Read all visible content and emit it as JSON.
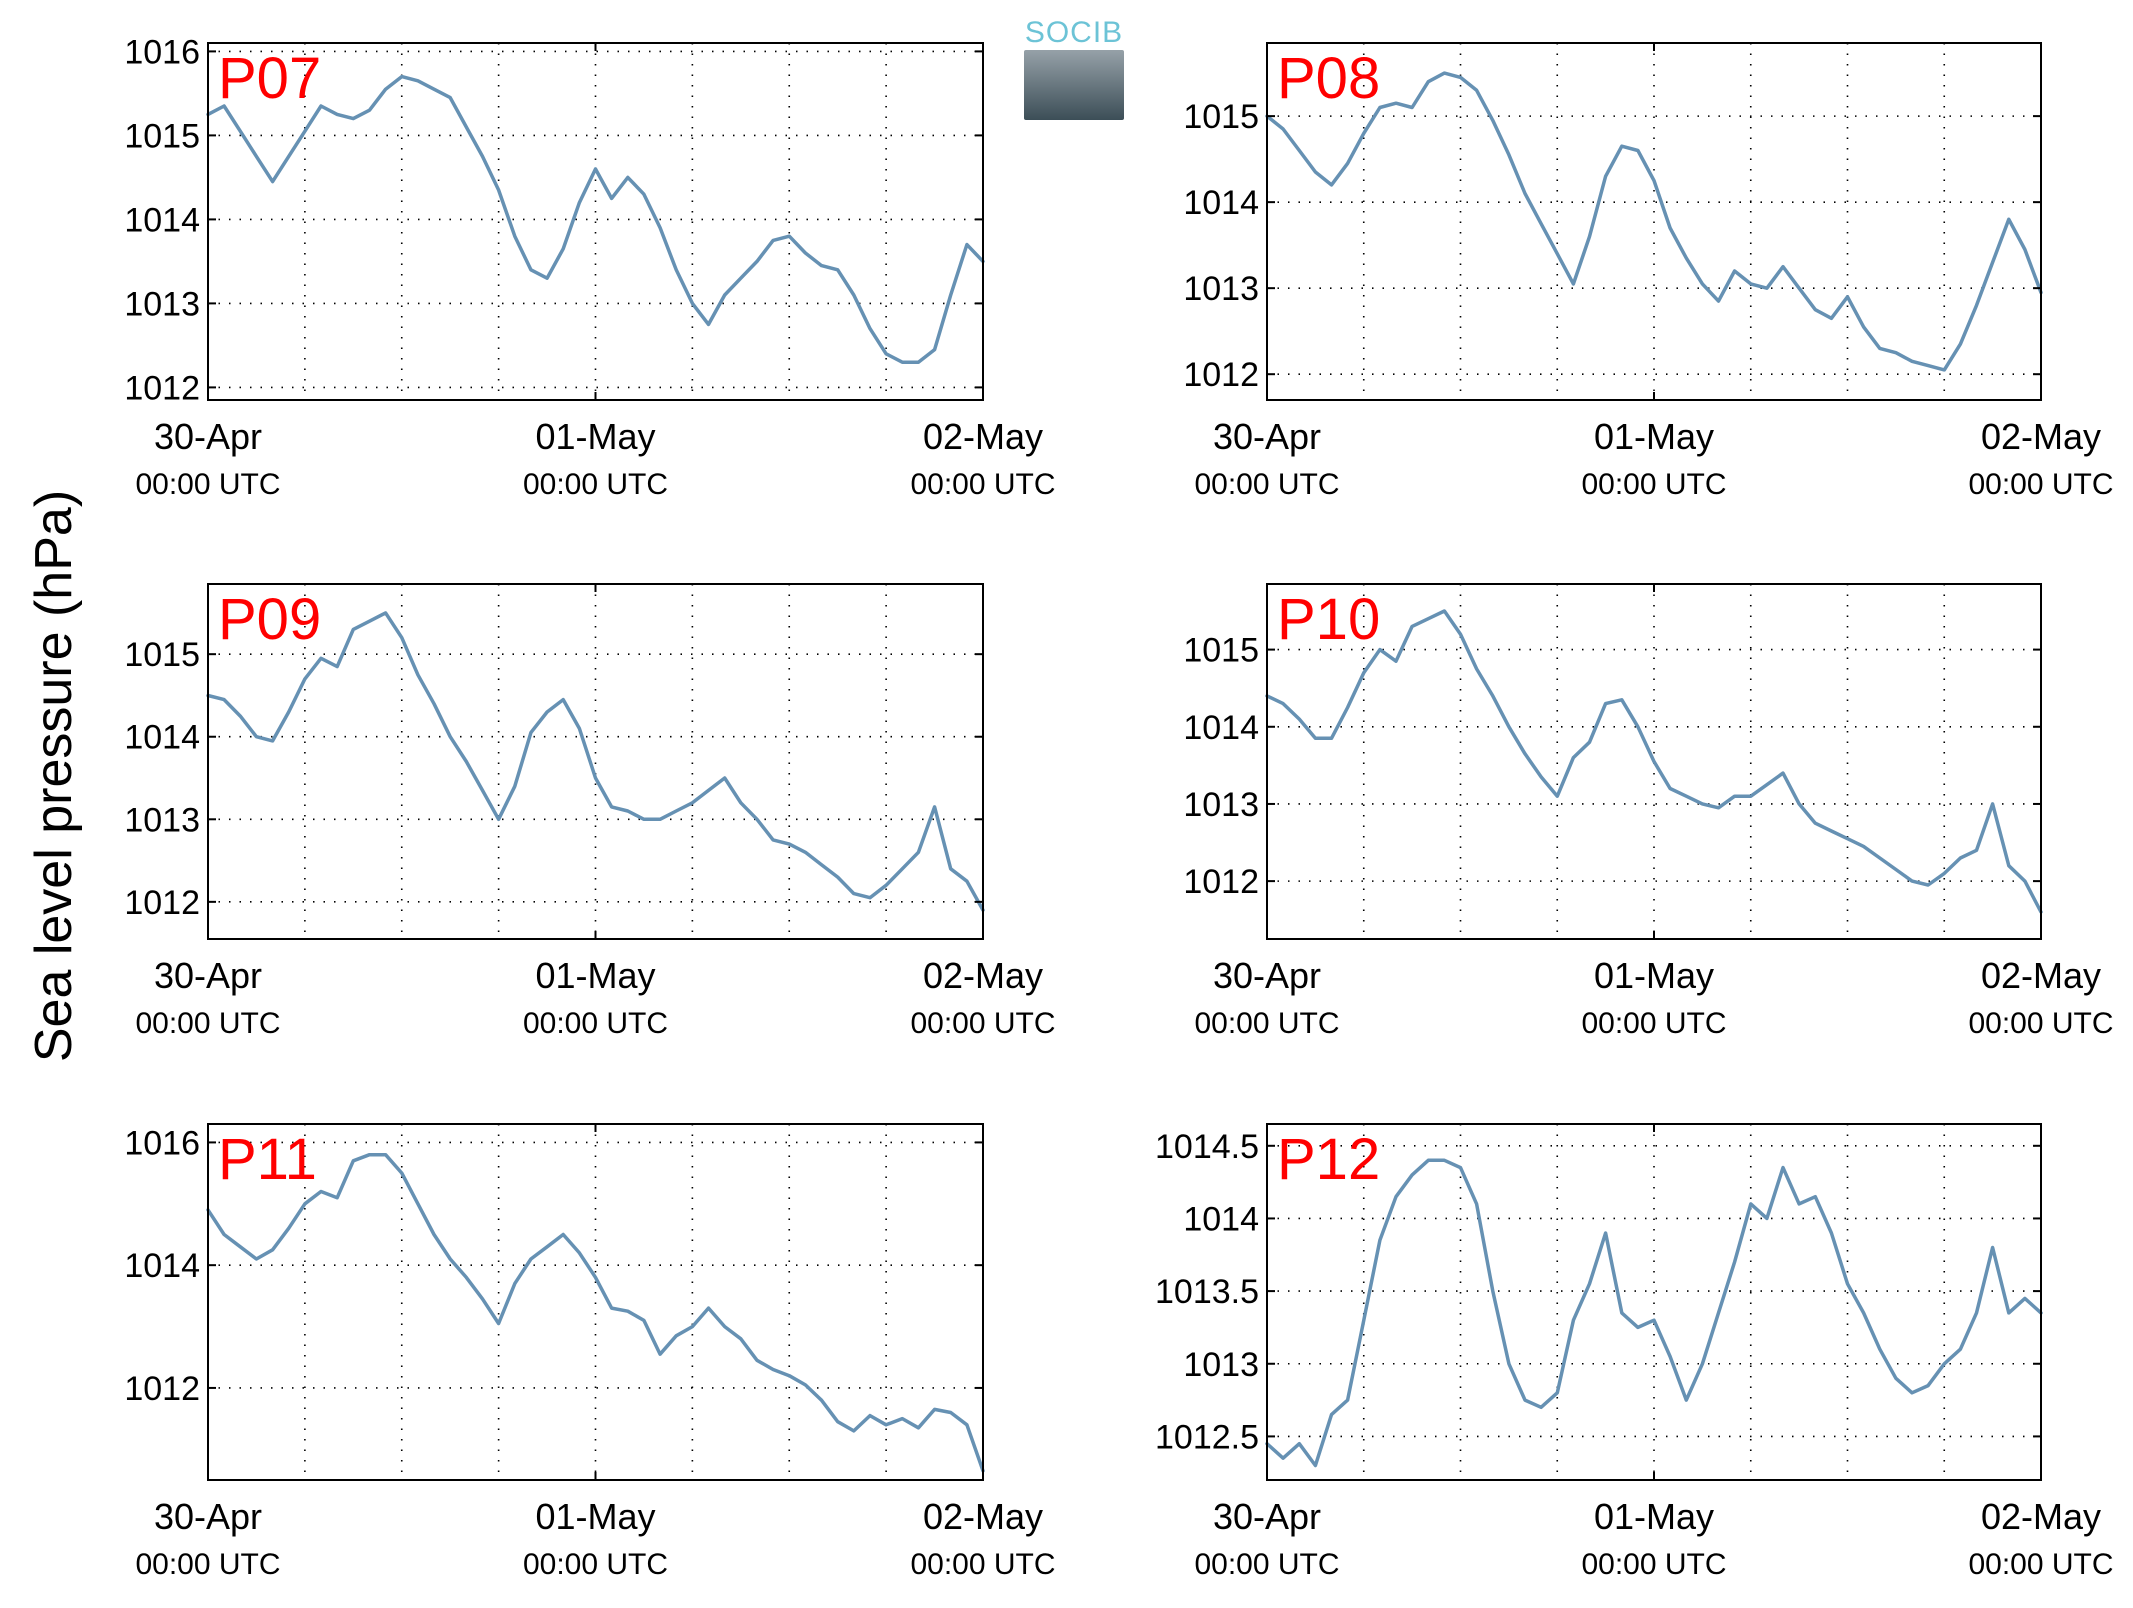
{
  "figure": {
    "ylabel": "Sea level pressure (hPa)",
    "logo_text": "SOCIB"
  },
  "style": {
    "line_color": "#6691b3",
    "label_color": "#ff0000"
  },
  "chart_data": [
    {
      "type": "line",
      "label": "P07",
      "x_ticks": [
        {
          "main": "30-Apr",
          "sub": "00:00 UTC"
        },
        {
          "main": "01-May",
          "sub": "00:00 UTC"
        },
        {
          "main": "02-May",
          "sub": "00:00 UTC"
        }
      ],
      "ylim": [
        1011.85,
        1016.1
      ],
      "yticks": [
        1012,
        1013,
        1014,
        1015,
        1016
      ],
      "ytick_labels": [
        "1012",
        "1013",
        "1014",
        "1015",
        "1016"
      ],
      "grid": true,
      "x": [
        0,
        1,
        2,
        3,
        4,
        5,
        6,
        7,
        8,
        9,
        10,
        11,
        12,
        13,
        14,
        15,
        16,
        17,
        18,
        19,
        20,
        21,
        22,
        23,
        24,
        25,
        26,
        27,
        28,
        29,
        30,
        31,
        32,
        33,
        34,
        35,
        36,
        37,
        38,
        39,
        40,
        41,
        42,
        43,
        44,
        45,
        46,
        47,
        48
      ],
      "y": [
        1015.25,
        1015.35,
        1015.05,
        1014.75,
        1014.45,
        1014.75,
        1015.05,
        1015.35,
        1015.25,
        1015.2,
        1015.3,
        1015.55,
        1015.7,
        1015.65,
        1015.55,
        1015.45,
        1015.1,
        1014.75,
        1014.35,
        1013.8,
        1013.4,
        1013.3,
        1013.65,
        1014.2,
        1014.6,
        1014.25,
        1014.5,
        1014.3,
        1013.9,
        1013.4,
        1013.0,
        1012.75,
        1013.1,
        1013.3,
        1013.5,
        1013.75,
        1013.8,
        1013.6,
        1013.45,
        1013.4,
        1013.1,
        1012.7,
        1012.4,
        1012.3,
        1012.3,
        1012.45,
        1013.1,
        1013.7,
        1013.5
      ]
    },
    {
      "type": "line",
      "label": "P08",
      "x_ticks": [
        {
          "main": "30-Apr",
          "sub": "00:00 UTC"
        },
        {
          "main": "01-May",
          "sub": "00:00 UTC"
        },
        {
          "main": "02-May",
          "sub": "00:00 UTC"
        }
      ],
      "ylim": [
        1011.7,
        1015.85
      ],
      "yticks": [
        1012,
        1013,
        1014,
        1015
      ],
      "ytick_labels": [
        "1012",
        "1013",
        "1014",
        "1015"
      ],
      "grid": true,
      "x": [
        0,
        1,
        2,
        3,
        4,
        5,
        6,
        7,
        8,
        9,
        10,
        11,
        12,
        13,
        14,
        15,
        16,
        17,
        18,
        19,
        20,
        21,
        22,
        23,
        24,
        25,
        26,
        27,
        28,
        29,
        30,
        31,
        32,
        33,
        34,
        35,
        36,
        37,
        38,
        39,
        40,
        41,
        42,
        43,
        44,
        45,
        46,
        47,
        48
      ],
      "y": [
        1015.0,
        1014.85,
        1014.6,
        1014.35,
        1014.2,
        1014.45,
        1014.8,
        1015.1,
        1015.15,
        1015.1,
        1015.4,
        1015.5,
        1015.45,
        1015.3,
        1014.95,
        1014.55,
        1014.1,
        1013.75,
        1013.4,
        1013.05,
        1013.6,
        1014.3,
        1014.65,
        1014.6,
        1014.25,
        1013.7,
        1013.35,
        1013.05,
        1012.85,
        1013.2,
        1013.05,
        1013.0,
        1013.25,
        1013.0,
        1012.75,
        1012.65,
        1012.9,
        1012.55,
        1012.3,
        1012.25,
        1012.15,
        1012.1,
        1012.05,
        1012.35,
        1012.8,
        1013.3,
        1013.8,
        1013.45,
        1012.95
      ]
    },
    {
      "type": "line",
      "label": "P09",
      "x_ticks": [
        {
          "main": "30-Apr",
          "sub": "00:00 UTC"
        },
        {
          "main": "01-May",
          "sub": "00:00 UTC"
        },
        {
          "main": "02-May",
          "sub": "00:00 UTC"
        }
      ],
      "ylim": [
        1011.55,
        1015.85
      ],
      "yticks": [
        1012,
        1013,
        1014,
        1015
      ],
      "ytick_labels": [
        "1012",
        "1013",
        "1014",
        "1015"
      ],
      "grid": true,
      "x": [
        0,
        1,
        2,
        3,
        4,
        5,
        6,
        7,
        8,
        9,
        10,
        11,
        12,
        13,
        14,
        15,
        16,
        17,
        18,
        19,
        20,
        21,
        22,
        23,
        24,
        25,
        26,
        27,
        28,
        29,
        30,
        31,
        32,
        33,
        34,
        35,
        36,
        37,
        38,
        39,
        40,
        41,
        42,
        43,
        44,
        45,
        46,
        47,
        48
      ],
      "y": [
        1014.5,
        1014.45,
        1014.25,
        1014.0,
        1013.95,
        1014.3,
        1014.7,
        1014.95,
        1014.85,
        1015.3,
        1015.4,
        1015.5,
        1015.2,
        1014.75,
        1014.4,
        1014.0,
        1013.7,
        1013.35,
        1013.0,
        1013.4,
        1014.05,
        1014.3,
        1014.45,
        1014.1,
        1013.5,
        1013.15,
        1013.1,
        1013.0,
        1013.0,
        1013.1,
        1013.2,
        1013.35,
        1013.5,
        1013.2,
        1013.0,
        1012.75,
        1012.7,
        1012.6,
        1012.45,
        1012.3,
        1012.1,
        1012.05,
        1012.2,
        1012.4,
        1012.6,
        1013.15,
        1012.4,
        1012.25,
        1011.9
      ]
    },
    {
      "type": "line",
      "label": "P10",
      "x_ticks": [
        {
          "main": "30-Apr",
          "sub": "00:00 UTC"
        },
        {
          "main": "01-May",
          "sub": "00:00 UTC"
        },
        {
          "main": "02-May",
          "sub": "00:00 UTC"
        }
      ],
      "ylim": [
        1011.25,
        1015.85
      ],
      "yticks": [
        1012,
        1013,
        1014,
        1015
      ],
      "ytick_labels": [
        "1012",
        "1013",
        "1014",
        "1015"
      ],
      "grid": true,
      "x": [
        0,
        1,
        2,
        3,
        4,
        5,
        6,
        7,
        8,
        9,
        10,
        11,
        12,
        13,
        14,
        15,
        16,
        17,
        18,
        19,
        20,
        21,
        22,
        23,
        24,
        25,
        26,
        27,
        28,
        29,
        30,
        31,
        32,
        33,
        34,
        35,
        36,
        37,
        38,
        39,
        40,
        41,
        42,
        43,
        44,
        45,
        46,
        47,
        48
      ],
      "y": [
        1014.4,
        1014.3,
        1014.1,
        1013.85,
        1013.85,
        1014.25,
        1014.7,
        1015.0,
        1014.85,
        1015.3,
        1015.4,
        1015.5,
        1015.2,
        1014.75,
        1014.4,
        1014.0,
        1013.65,
        1013.35,
        1013.1,
        1013.6,
        1013.8,
        1014.3,
        1014.35,
        1014.0,
        1013.55,
        1013.2,
        1013.1,
        1013.0,
        1012.95,
        1013.1,
        1013.1,
        1013.25,
        1013.4,
        1013.0,
        1012.75,
        1012.65,
        1012.55,
        1012.45,
        1012.3,
        1012.15,
        1012.0,
        1011.95,
        1012.1,
        1012.3,
        1012.4,
        1013.0,
        1012.2,
        1012.0,
        1011.6
      ]
    },
    {
      "type": "line",
      "label": "P11",
      "x_ticks": [
        {
          "main": "30-Apr",
          "sub": "00:00 UTC"
        },
        {
          "main": "01-May",
          "sub": "00:00 UTC"
        },
        {
          "main": "02-May",
          "sub": "00:00 UTC"
        }
      ],
      "ylim": [
        1010.5,
        1016.3
      ],
      "yticks": [
        1012,
        1014,
        1016
      ],
      "ytick_labels": [
        "1012",
        "1014",
        "1016"
      ],
      "grid": true,
      "x": [
        0,
        1,
        2,
        3,
        4,
        5,
        6,
        7,
        8,
        9,
        10,
        11,
        12,
        13,
        14,
        15,
        16,
        17,
        18,
        19,
        20,
        21,
        22,
        23,
        24,
        25,
        26,
        27,
        28,
        29,
        30,
        31,
        32,
        33,
        34,
        35,
        36,
        37,
        38,
        39,
        40,
        41,
        42,
        43,
        44,
        45,
        46,
        47,
        48
      ],
      "y": [
        1014.9,
        1014.5,
        1014.3,
        1014.1,
        1014.25,
        1014.6,
        1015.0,
        1015.2,
        1015.1,
        1015.7,
        1015.8,
        1015.8,
        1015.5,
        1015.0,
        1014.5,
        1014.1,
        1013.8,
        1013.45,
        1013.05,
        1013.7,
        1014.1,
        1014.3,
        1014.5,
        1014.2,
        1013.8,
        1013.3,
        1013.25,
        1013.1,
        1012.55,
        1012.85,
        1013.0,
        1013.3,
        1013.0,
        1012.8,
        1012.45,
        1012.3,
        1012.2,
        1012.05,
        1011.8,
        1011.45,
        1011.3,
        1011.55,
        1011.4,
        1011.5,
        1011.35,
        1011.65,
        1011.6,
        1011.4,
        1010.65
      ]
    },
    {
      "type": "line",
      "label": "P12",
      "x_ticks": [
        {
          "main": "30-Apr",
          "sub": "00:00 UTC"
        },
        {
          "main": "01-May",
          "sub": "00:00 UTC"
        },
        {
          "main": "02-May",
          "sub": "00:00 UTC"
        }
      ],
      "ylim": [
        1012.2,
        1014.65
      ],
      "yticks": [
        1012.5,
        1013,
        1013.5,
        1014,
        1014.5
      ],
      "ytick_labels": [
        "1012.5",
        "1013",
        "1013.5",
        "1014",
        "1014.5"
      ],
      "grid": true,
      "x": [
        0,
        1,
        2,
        3,
        4,
        5,
        6,
        7,
        8,
        9,
        10,
        11,
        12,
        13,
        14,
        15,
        16,
        17,
        18,
        19,
        20,
        21,
        22,
        23,
        24,
        25,
        26,
        27,
        28,
        29,
        30,
        31,
        32,
        33,
        34,
        35,
        36,
        37,
        38,
        39,
        40,
        41,
        42,
        43,
        44,
        45,
        46,
        47,
        48
      ],
      "y": [
        1012.45,
        1012.35,
        1012.45,
        1012.3,
        1012.65,
        1012.75,
        1013.3,
        1013.85,
        1014.15,
        1014.3,
        1014.4,
        1014.4,
        1014.35,
        1014.1,
        1013.5,
        1013.0,
        1012.75,
        1012.7,
        1012.8,
        1013.3,
        1013.55,
        1013.9,
        1013.35,
        1013.25,
        1013.3,
        1013.05,
        1012.75,
        1013.0,
        1013.35,
        1013.7,
        1014.1,
        1014.0,
        1014.35,
        1014.1,
        1014.15,
        1013.9,
        1013.55,
        1013.35,
        1013.1,
        1012.9,
        1012.8,
        1012.85,
        1013.0,
        1013.1,
        1013.35,
        1013.8,
        1013.35,
        1013.45,
        1013.35
      ]
    }
  ]
}
